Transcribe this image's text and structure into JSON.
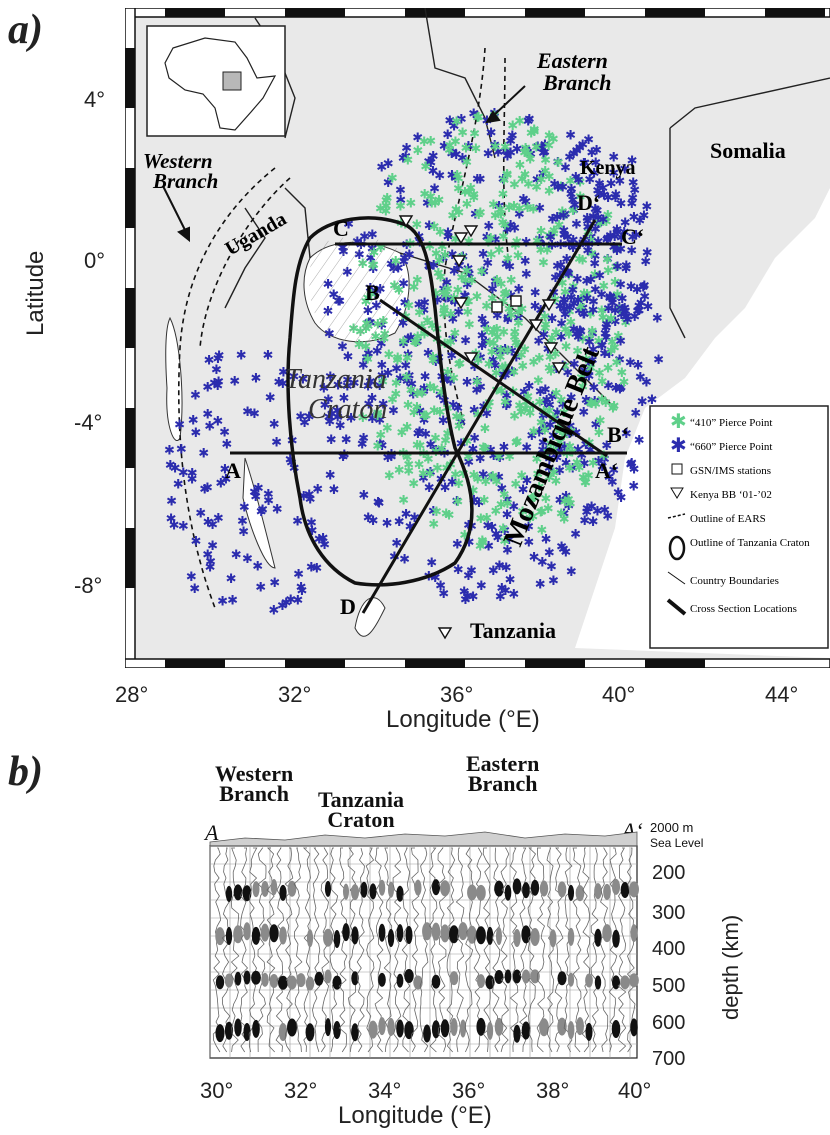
{
  "panel_a": {
    "label": "a)",
    "lat_ticks": [
      "4°",
      "0°",
      "-4°",
      "-8°"
    ],
    "lon_ticks": [
      "28°",
      "32°",
      "36°",
      "40°",
      "44°"
    ],
    "xlabel": "Longitude (°E)",
    "ylabel": "Latitude",
    "map_labels": {
      "eastern_branch": [
        "Eastern",
        "Branch"
      ],
      "western_branch": [
        "Western",
        "Branch"
      ],
      "somalia": "Somalia",
      "kenya": "Kenya",
      "uganda": "Uganda",
      "tanzania": "Tanzania",
      "craton": [
        "Tanzania",
        "Craton"
      ],
      "mozambique": "Mozambique Belt"
    },
    "sections": {
      "A": "A",
      "A_prime": "A‘",
      "B": "B",
      "B_prime": "B‘",
      "C": "C",
      "C_prime": "C‘",
      "D": "D",
      "D_prime": "D‘"
    },
    "legend": [
      {
        "symbol": "green-star",
        "text": "“410” Pierce Point"
      },
      {
        "symbol": "blue-star",
        "text": "“660” Pierce Point"
      },
      {
        "symbol": "square",
        "text": "GSN/IMS stations"
      },
      {
        "symbol": "triangle",
        "text": "Kenya BB ‘01-’02"
      },
      {
        "symbol": "dashed-line",
        "text": "Outline of EARS"
      },
      {
        "symbol": "craton-outline",
        "text": "Outline of Tanzania Craton"
      },
      {
        "symbol": "thin-line",
        "text": "Country Boundaries"
      },
      {
        "symbol": "section-line",
        "text": "Cross Section Locations"
      }
    ],
    "colors": {
      "green": "#5fd08a",
      "blue": "#2b2cae",
      "land": "#e9e9e9"
    }
  },
  "panel_b": {
    "label": "b)",
    "regions": [
      [
        "Western",
        "Branch"
      ],
      [
        "Tanzania",
        "Craton"
      ],
      [
        "Eastern",
        "Branch"
      ]
    ],
    "ends": {
      "left": "A",
      "right": "A‘"
    },
    "elev_labels": [
      "2000 m",
      "Sea Level"
    ],
    "depth_ticks": [
      "200",
      "300",
      "400",
      "500",
      "600",
      "700"
    ],
    "ylabel": "depth (km)",
    "lon_ticks": [
      "30°",
      "32°",
      "34°",
      "36°",
      "38°",
      "40°"
    ],
    "xlabel": "Longitude (°E)"
  }
}
